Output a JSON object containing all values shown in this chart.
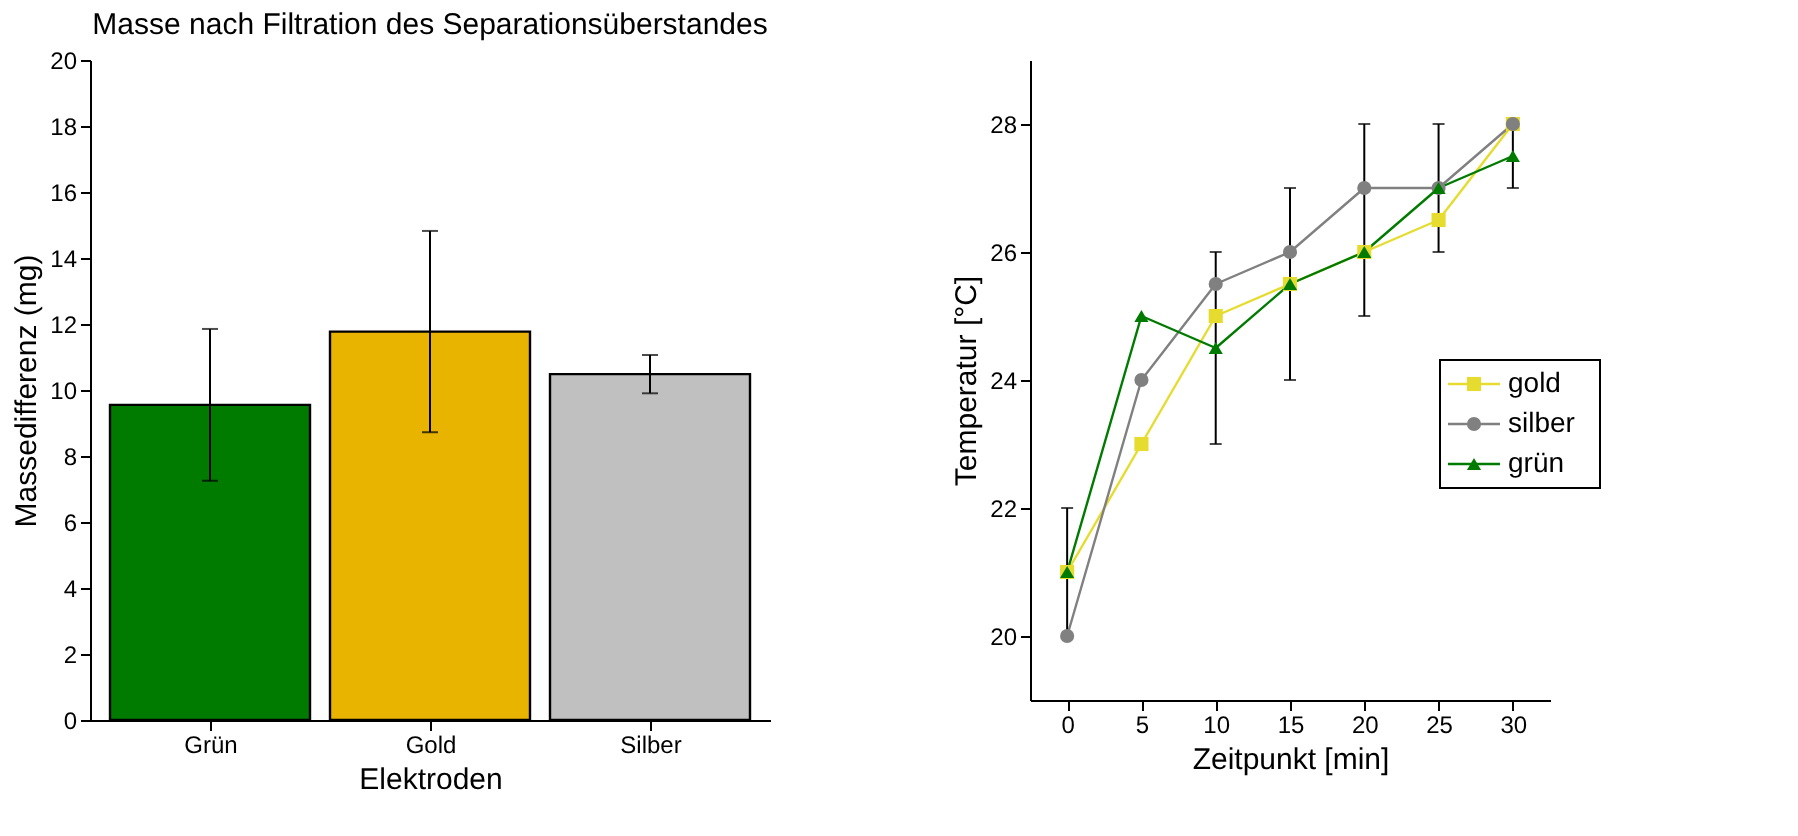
{
  "chart_data": [
    {
      "type": "bar",
      "title": "Masse nach Filtration des Separationsüberstandes",
      "xlabel": "Elektroden",
      "ylabel": "Massedifferenz (mg)",
      "categories": [
        "Grün",
        "Gold",
        "Silber"
      ],
      "values": [
        9.55,
        11.77,
        10.48
      ],
      "errors": [
        2.3,
        3.05,
        0.58
      ],
      "colors": [
        "#007b00",
        "#e8b400",
        "#c0c0c0"
      ],
      "ylim": [
        0,
        20
      ],
      "yticks": [
        0,
        2,
        4,
        6,
        8,
        10,
        12,
        14,
        16,
        18,
        20
      ],
      "grid": false,
      "legend": false
    },
    {
      "type": "line",
      "xlabel": "Zeitpunkt [min]",
      "ylabel": "Temperatur [°C]",
      "x": [
        0,
        5,
        10,
        15,
        20,
        25,
        30
      ],
      "xlim": [
        -2.5,
        32.5
      ],
      "xticks": [
        0,
        5,
        10,
        15,
        20,
        25,
        30
      ],
      "ylim": [
        19,
        29
      ],
      "yticks": [
        20,
        22,
        24,
        26,
        28
      ],
      "grid": false,
      "legend": "right",
      "series": [
        {
          "name": "gold",
          "color": "#e6dc30",
          "marker": "square",
          "values": [
            21,
            23,
            25,
            25.5,
            26,
            26.5,
            28
          ]
        },
        {
          "name": "silber",
          "color": "#808080",
          "marker": "circle",
          "values": [
            20,
            24,
            25.5,
            26,
            27,
            27,
            28
          ]
        },
        {
          "name": "grün",
          "color": "#007b00",
          "marker": "triangle",
          "values": [
            21,
            25,
            24.5,
            25.5,
            26,
            27,
            27.5
          ],
          "errors": [
            [
              20,
              22
            ],
            null,
            [
              23,
              26
            ],
            [
              24,
              27
            ],
            [
              25,
              28
            ],
            [
              26,
              28
            ],
            [
              27,
              28
            ]
          ]
        }
      ]
    }
  ]
}
